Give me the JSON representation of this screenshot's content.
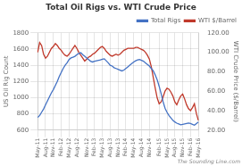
{
  "chart_data": {
    "type": "line",
    "title": "Total Oil Rigs vs. WTI Crude Price",
    "y_label": "US Oil Rig Count",
    "y2_label": "WTI Crude Price ($/Barrel)",
    "annotations": [
      "The Sounding Line.com"
    ],
    "categories": [
      "May-11",
      null,
      null,
      null,
      "Aug-11",
      null,
      null,
      null,
      "Nov-11",
      null,
      null,
      null,
      "Feb-12",
      null,
      null,
      null,
      "May-12",
      null,
      null,
      null,
      "Aug-12",
      null,
      null,
      null,
      null,
      "Nov-12",
      null,
      null,
      null,
      "Feb-13",
      null,
      null,
      null,
      "May-13",
      null,
      null,
      null,
      "Aug-13",
      null,
      null,
      null,
      "Nov-13",
      null,
      null,
      null,
      "Feb-14",
      null,
      null,
      null,
      "May-14",
      null,
      null,
      null,
      "Aug-14",
      null,
      null,
      null,
      "Nov-14",
      null,
      null,
      null,
      null,
      "Feb-15",
      null,
      null,
      null,
      "May-15",
      null,
      null,
      null,
      "Aug-15",
      null,
      null,
      null,
      "Nov-15",
      null,
      null,
      null,
      "Feb-16",
      null,
      null,
      null,
      "May-16"
    ],
    "series": [
      {
        "name": "Total Rigs",
        "color": "#4472c4",
        "values": [
          755,
          780,
          820,
          860,
          910,
          960,
          1010,
          1060,
          1100,
          1150,
          1200,
          1260,
          1310,
          1360,
          1400,
          1430,
          1470,
          1490,
          1500,
          1510,
          1530,
          1545,
          1555,
          1530,
          1510,
          1490,
          1470,
          1450,
          1440,
          1450,
          1455,
          1460,
          1465,
          1475,
          1480,
          1455,
          1430,
          1400,
          1390,
          1370,
          1360,
          1350,
          1340,
          1330,
          1340,
          1360,
          1380,
          1400,
          1420,
          1440,
          1455,
          1465,
          1470,
          1460,
          1450,
          1430,
          1410,
          1390,
          1360,
          1330,
          1280,
          1220,
          1140,
          1050,
          950,
          870,
          820,
          780,
          750,
          720,
          700,
          685,
          675,
          665,
          670,
          675,
          680,
          685,
          680,
          670,
          660,
          680,
          700
        ]
      },
      {
        "name": "WTI $/Barrel",
        "color": "#c0392b",
        "axis": "y2",
        "values": [
          100,
          110,
          107,
          98,
          94,
          96,
          100,
          104,
          106,
          109,
          107,
          104,
          102,
          99,
          97,
          96,
          98,
          101,
          104,
          107,
          104,
          100,
          97,
          94,
          91,
          93,
          95,
          96,
          98,
          99,
          101,
          103,
          105,
          106,
          104,
          101,
          99,
          97,
          96,
          97,
          98,
          97,
          98,
          100,
          102,
          103,
          104,
          104,
          104,
          104,
          105,
          105,
          104,
          103,
          102,
          100,
          97,
          93,
          85,
          74,
          63,
          53,
          47,
          49,
          54,
          60,
          63,
          62,
          59,
          55,
          49,
          46,
          51,
          55,
          57,
          52,
          46,
          42,
          40,
          43,
          47,
          37,
          30
        ]
      }
    ],
    "ylim": [
      600,
      1800
    ],
    "yticks": [
      600,
      800,
      1000,
      1200,
      1400,
      1600,
      1800
    ],
    "y2lim": [
      20.0,
      120.0
    ],
    "y2ticks": [
      {
        "value": 20.0,
        "label": "20.00"
      },
      {
        "value": 40.0,
        "label": "40.00"
      },
      {
        "value": 60.0,
        "label": "60.00"
      },
      {
        "value": 80.0,
        "label": "80.00"
      },
      {
        "value": 100.0,
        "label": "100.00"
      },
      {
        "value": 120.0,
        "label": "120.00"
      }
    ],
    "grid": true,
    "legend": "upper right"
  }
}
